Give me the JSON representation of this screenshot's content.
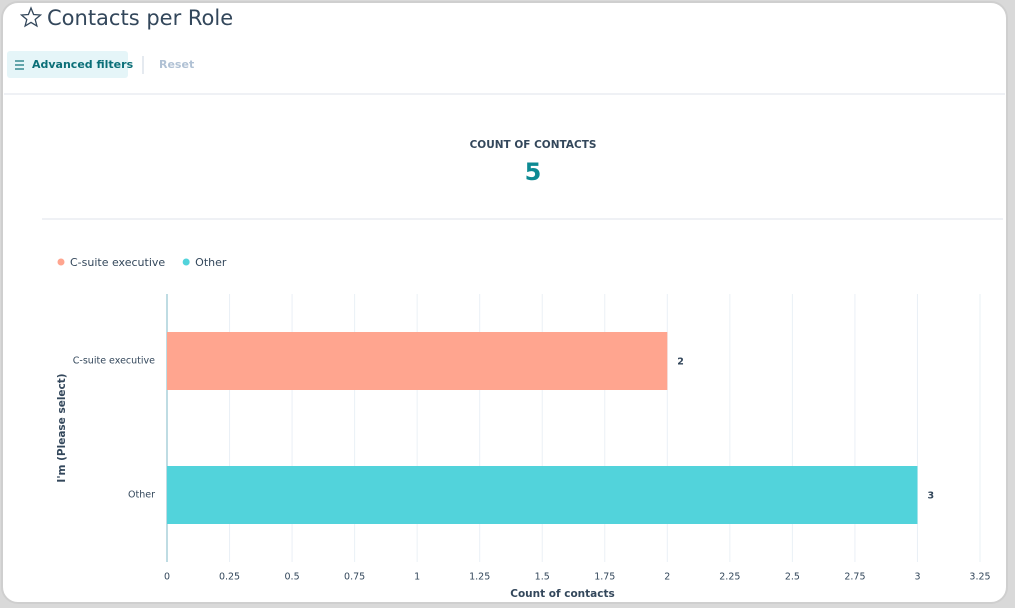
{
  "header": {
    "title": "Contacts per Role",
    "filters_button": "Advanced filters",
    "reset": "Reset"
  },
  "summary": {
    "label": "COUNT OF CONTACTS",
    "value": 5
  },
  "chart_data": {
    "type": "bar",
    "orientation": "horizontal",
    "categories": [
      "C-suite executive",
      "Other"
    ],
    "series": [
      {
        "name": "C-suite executive",
        "color": "#ffa58f",
        "values": [
          2,
          null
        ]
      },
      {
        "name": "Other",
        "color": "#52d3db",
        "values": [
          null,
          3
        ]
      }
    ],
    "x_label": "Count of contacts",
    "y_label": "I'm (Please select)",
    "xlim": [
      0,
      3.25
    ],
    "xticks": [
      0,
      0.25,
      0.5,
      0.75,
      1,
      1.25,
      1.5,
      1.75,
      2,
      2.25,
      2.5,
      2.75,
      3,
      3.25
    ],
    "grid": true,
    "legend": "top-left"
  }
}
